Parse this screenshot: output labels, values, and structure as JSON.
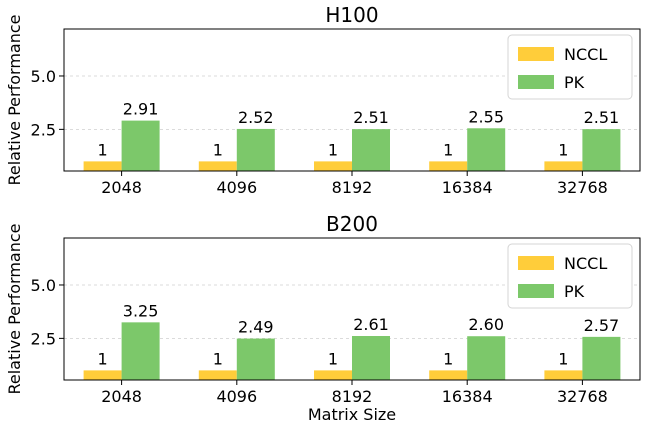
{
  "figure": {
    "xlabel": "Matrix Size",
    "ylabel": "Relative Performance"
  },
  "colors": {
    "nccl": "#FFCD3A",
    "pk": "#7CC86A",
    "grid": "#cfcfcf",
    "axis": "#000000"
  },
  "chart_data": [
    {
      "type": "bar",
      "title": "H100",
      "categories": [
        "2048",
        "4096",
        "8192",
        "16384",
        "32768"
      ],
      "series": [
        {
          "name": "NCCL",
          "values": [
            1,
            1,
            1,
            1,
            1
          ],
          "labels": [
            "1",
            "1",
            "1",
            "1",
            "1"
          ]
        },
        {
          "name": "PK",
          "values": [
            2.91,
            2.52,
            2.51,
            2.55,
            2.51
          ],
          "labels": [
            "2.91",
            "2.52",
            "2.51",
            "2.55",
            "2.51"
          ]
        }
      ],
      "ylabel": "Relative Performance",
      "ylim": [
        0.55,
        7.2
      ],
      "yticks": [
        2.5,
        5.0
      ],
      "ytick_labels": [
        "2.5",
        "5.0"
      ],
      "grid": "y-dashed",
      "legend": "top-right"
    },
    {
      "type": "bar",
      "title": "B200",
      "categories": [
        "2048",
        "4096",
        "8192",
        "16384",
        "32768"
      ],
      "series": [
        {
          "name": "NCCL",
          "values": [
            1,
            1,
            1,
            1,
            1
          ],
          "labels": [
            "1",
            "1",
            "1",
            "1",
            "1"
          ]
        },
        {
          "name": "PK",
          "values": [
            3.25,
            2.49,
            2.61,
            2.6,
            2.57
          ],
          "labels": [
            "3.25",
            "2.49",
            "2.61",
            "2.60",
            "2.57"
          ]
        }
      ],
      "xlabel": "Matrix Size",
      "ylabel": "Relative Performance",
      "ylim": [
        0.55,
        7.2
      ],
      "yticks": [
        2.5,
        5.0
      ],
      "ytick_labels": [
        "2.5",
        "5.0"
      ],
      "grid": "y-dashed",
      "legend": "top-right"
    }
  ]
}
